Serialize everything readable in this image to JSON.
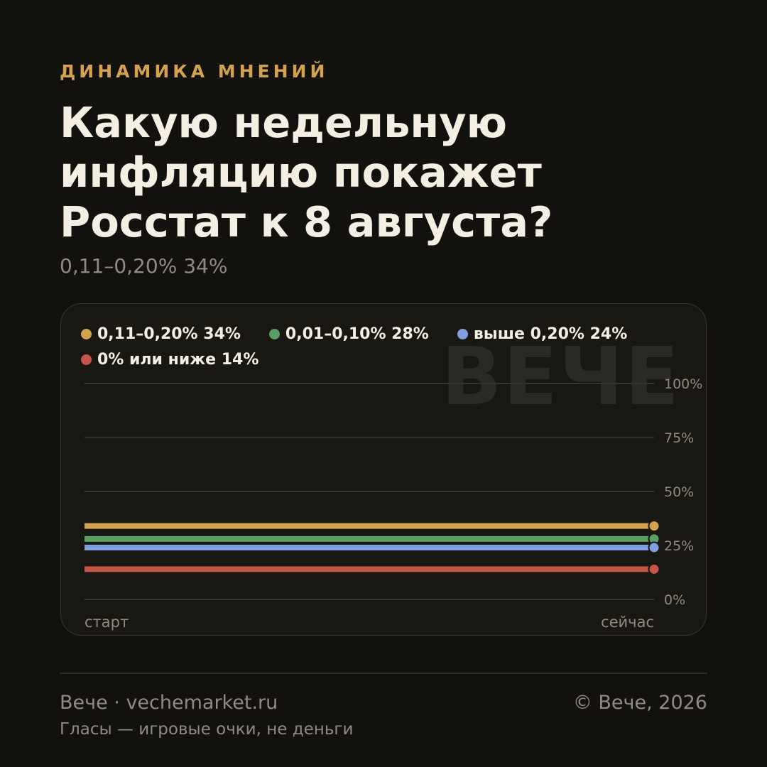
{
  "header": {
    "eyebrow": "ДИНАМИКА МНЕНИЙ",
    "title": "Какую недельную инфляцию покажет Росстат к 8 августа?",
    "subtitle": "0,11–0,20% 34%"
  },
  "watermark": "ВЕЧЕ",
  "chart_data": {
    "type": "line",
    "x": [
      "старт",
      "сейчас"
    ],
    "ylim": [
      0,
      100
    ],
    "yticks": [
      "0%",
      "25%",
      "50%",
      "75%",
      "100%"
    ],
    "ytick_values": [
      0,
      25,
      50,
      75,
      100
    ],
    "grid": true,
    "legend_position": "top-left",
    "series": [
      {
        "name": "0,11–0,20% 34%",
        "color": "#d4a24c",
        "values": [
          34,
          34
        ]
      },
      {
        "name": "0,01–0,10% 28%",
        "color": "#5a9e63",
        "values": [
          28,
          28
        ]
      },
      {
        "name": "выше 0,20% 24%",
        "color": "#7f9fe0",
        "values": [
          24,
          24
        ]
      },
      {
        "name": "0% или ниже 14%",
        "color": "#c7554a",
        "values": [
          14,
          14
        ]
      }
    ]
  },
  "footer": {
    "site": "Вече · vechemarket.ru",
    "copyright": "© Вече, 2026",
    "note": "Гласы — игровые очки, не деньги"
  }
}
